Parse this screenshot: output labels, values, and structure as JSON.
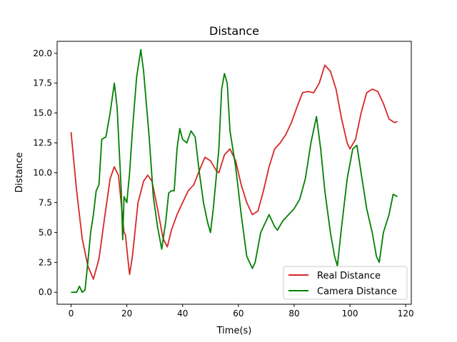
{
  "chart_data": {
    "type": "line",
    "title": "Distance",
    "xlabel": "Time(s)",
    "ylabel": "Distance",
    "xlim": [
      -5,
      122
    ],
    "ylim": [
      -1.0,
      21.0
    ],
    "xticks": [
      0,
      20,
      40,
      60,
      80,
      100,
      120
    ],
    "yticks": [
      0.0,
      2.5,
      5.0,
      7.5,
      10.0,
      12.5,
      15.0,
      17.5,
      20.0
    ],
    "grid": false,
    "legend_position": "bottom-right",
    "series": [
      {
        "name": "Real Distance",
        "color": "#d62728",
        "points": [
          [
            0,
            13.4
          ],
          [
            2,
            8.5
          ],
          [
            4,
            4.5
          ],
          [
            6,
            2.2
          ],
          [
            8,
            1.1
          ],
          [
            10,
            2.8
          ],
          [
            12,
            6.2
          ],
          [
            14,
            9.5
          ],
          [
            15.5,
            10.5
          ],
          [
            17,
            9.8
          ],
          [
            19,
            5.0
          ],
          [
            19.5,
            4.8
          ],
          [
            20.5,
            2.5
          ],
          [
            21,
            1.5
          ],
          [
            22,
            3.0
          ],
          [
            24,
            7.5
          ],
          [
            26,
            9.3
          ],
          [
            27.5,
            9.8
          ],
          [
            29,
            9.3
          ],
          [
            31,
            7.0
          ],
          [
            33,
            4.5
          ],
          [
            34.5,
            3.8
          ],
          [
            36,
            5.2
          ],
          [
            38,
            6.5
          ],
          [
            40,
            7.5
          ],
          [
            42,
            8.5
          ],
          [
            44,
            9.0
          ],
          [
            46,
            10.2
          ],
          [
            48,
            11.3
          ],
          [
            50,
            11.0
          ],
          [
            52,
            10.2
          ],
          [
            53,
            10.0
          ],
          [
            55,
            11.5
          ],
          [
            57,
            12.0
          ],
          [
            59,
            11.0
          ],
          [
            61,
            9.0
          ],
          [
            63,
            7.5
          ],
          [
            65,
            6.5
          ],
          [
            67,
            6.8
          ],
          [
            69,
            8.5
          ],
          [
            71,
            10.5
          ],
          [
            73,
            12.0
          ],
          [
            75,
            12.5
          ],
          [
            77,
            13.2
          ],
          [
            79,
            14.2
          ],
          [
            81,
            15.5
          ],
          [
            83,
            16.7
          ],
          [
            85,
            16.8
          ],
          [
            87,
            16.7
          ],
          [
            89,
            17.5
          ],
          [
            91,
            19.0
          ],
          [
            93,
            18.5
          ],
          [
            95,
            17.0
          ],
          [
            97,
            14.5
          ],
          [
            99,
            12.5
          ],
          [
            100,
            12.0
          ],
          [
            102,
            12.8
          ],
          [
            104,
            15.0
          ],
          [
            106,
            16.7
          ],
          [
            108,
            17.0
          ],
          [
            110,
            16.8
          ],
          [
            112,
            15.8
          ],
          [
            114,
            14.5
          ],
          [
            116,
            14.2
          ],
          [
            117,
            14.3
          ]
        ]
      },
      {
        "name": "Camera Distance",
        "color": "#008000",
        "points": [
          [
            0,
            0.0
          ],
          [
            2,
            0.0
          ],
          [
            3,
            0.5
          ],
          [
            4,
            0.0
          ],
          [
            5,
            0.2
          ],
          [
            6,
            2.5
          ],
          [
            7,
            5.0
          ],
          [
            8,
            6.5
          ],
          [
            9,
            8.5
          ],
          [
            10,
            9.0
          ],
          [
            11,
            12.8
          ],
          [
            12.5,
            13.0
          ],
          [
            14,
            15.0
          ],
          [
            15.5,
            17.5
          ],
          [
            16.5,
            15.5
          ],
          [
            18,
            8.5
          ],
          [
            18.5,
            4.4
          ],
          [
            19,
            8.0
          ],
          [
            20,
            7.5
          ],
          [
            21,
            10.0
          ],
          [
            22,
            13.5
          ],
          [
            23.5,
            18.0
          ],
          [
            25,
            20.3
          ],
          [
            26,
            18.5
          ],
          [
            28,
            13.0
          ],
          [
            29.5,
            8.0
          ],
          [
            31,
            5.5
          ],
          [
            32.5,
            3.6
          ],
          [
            34,
            6.0
          ],
          [
            35,
            8.3
          ],
          [
            36,
            8.5
          ],
          [
            37,
            8.5
          ],
          [
            38,
            12.0
          ],
          [
            39,
            13.7
          ],
          [
            40,
            12.8
          ],
          [
            41.5,
            12.5
          ],
          [
            43,
            13.5
          ],
          [
            44.5,
            13.0
          ],
          [
            46,
            10.0
          ],
          [
            47.5,
            7.5
          ],
          [
            49,
            5.8
          ],
          [
            50,
            5.0
          ],
          [
            51,
            7.0
          ],
          [
            53,
            12.0
          ],
          [
            54,
            17.0
          ],
          [
            55,
            18.3
          ],
          [
            56,
            17.5
          ],
          [
            57,
            13.5
          ],
          [
            59,
            10.5
          ],
          [
            61,
            6.5
          ],
          [
            63,
            3.0
          ],
          [
            65,
            2.0
          ],
          [
            66,
            2.5
          ],
          [
            68,
            5.0
          ],
          [
            70,
            6.0
          ],
          [
            71,
            6.5
          ],
          [
            73,
            5.5
          ],
          [
            74,
            5.2
          ],
          [
            76,
            6.0
          ],
          [
            78,
            6.5
          ],
          [
            80,
            7.0
          ],
          [
            82,
            7.8
          ],
          [
            84,
            9.5
          ],
          [
            86,
            12.5
          ],
          [
            88,
            14.7
          ],
          [
            89.5,
            12.0
          ],
          [
            91,
            8.5
          ],
          [
            93,
            5.0
          ],
          [
            94.5,
            3.0
          ],
          [
            95.5,
            2.2
          ],
          [
            97,
            5.5
          ],
          [
            99,
            9.5
          ],
          [
            101,
            12.0
          ],
          [
            102.5,
            12.3
          ],
          [
            104,
            10.0
          ],
          [
            106,
            7.0
          ],
          [
            108,
            5.0
          ],
          [
            109.5,
            3.0
          ],
          [
            110.5,
            2.5
          ],
          [
            112,
            5.0
          ],
          [
            114,
            6.5
          ],
          [
            115.5,
            8.2
          ],
          [
            117,
            8.0
          ]
        ]
      }
    ]
  }
}
